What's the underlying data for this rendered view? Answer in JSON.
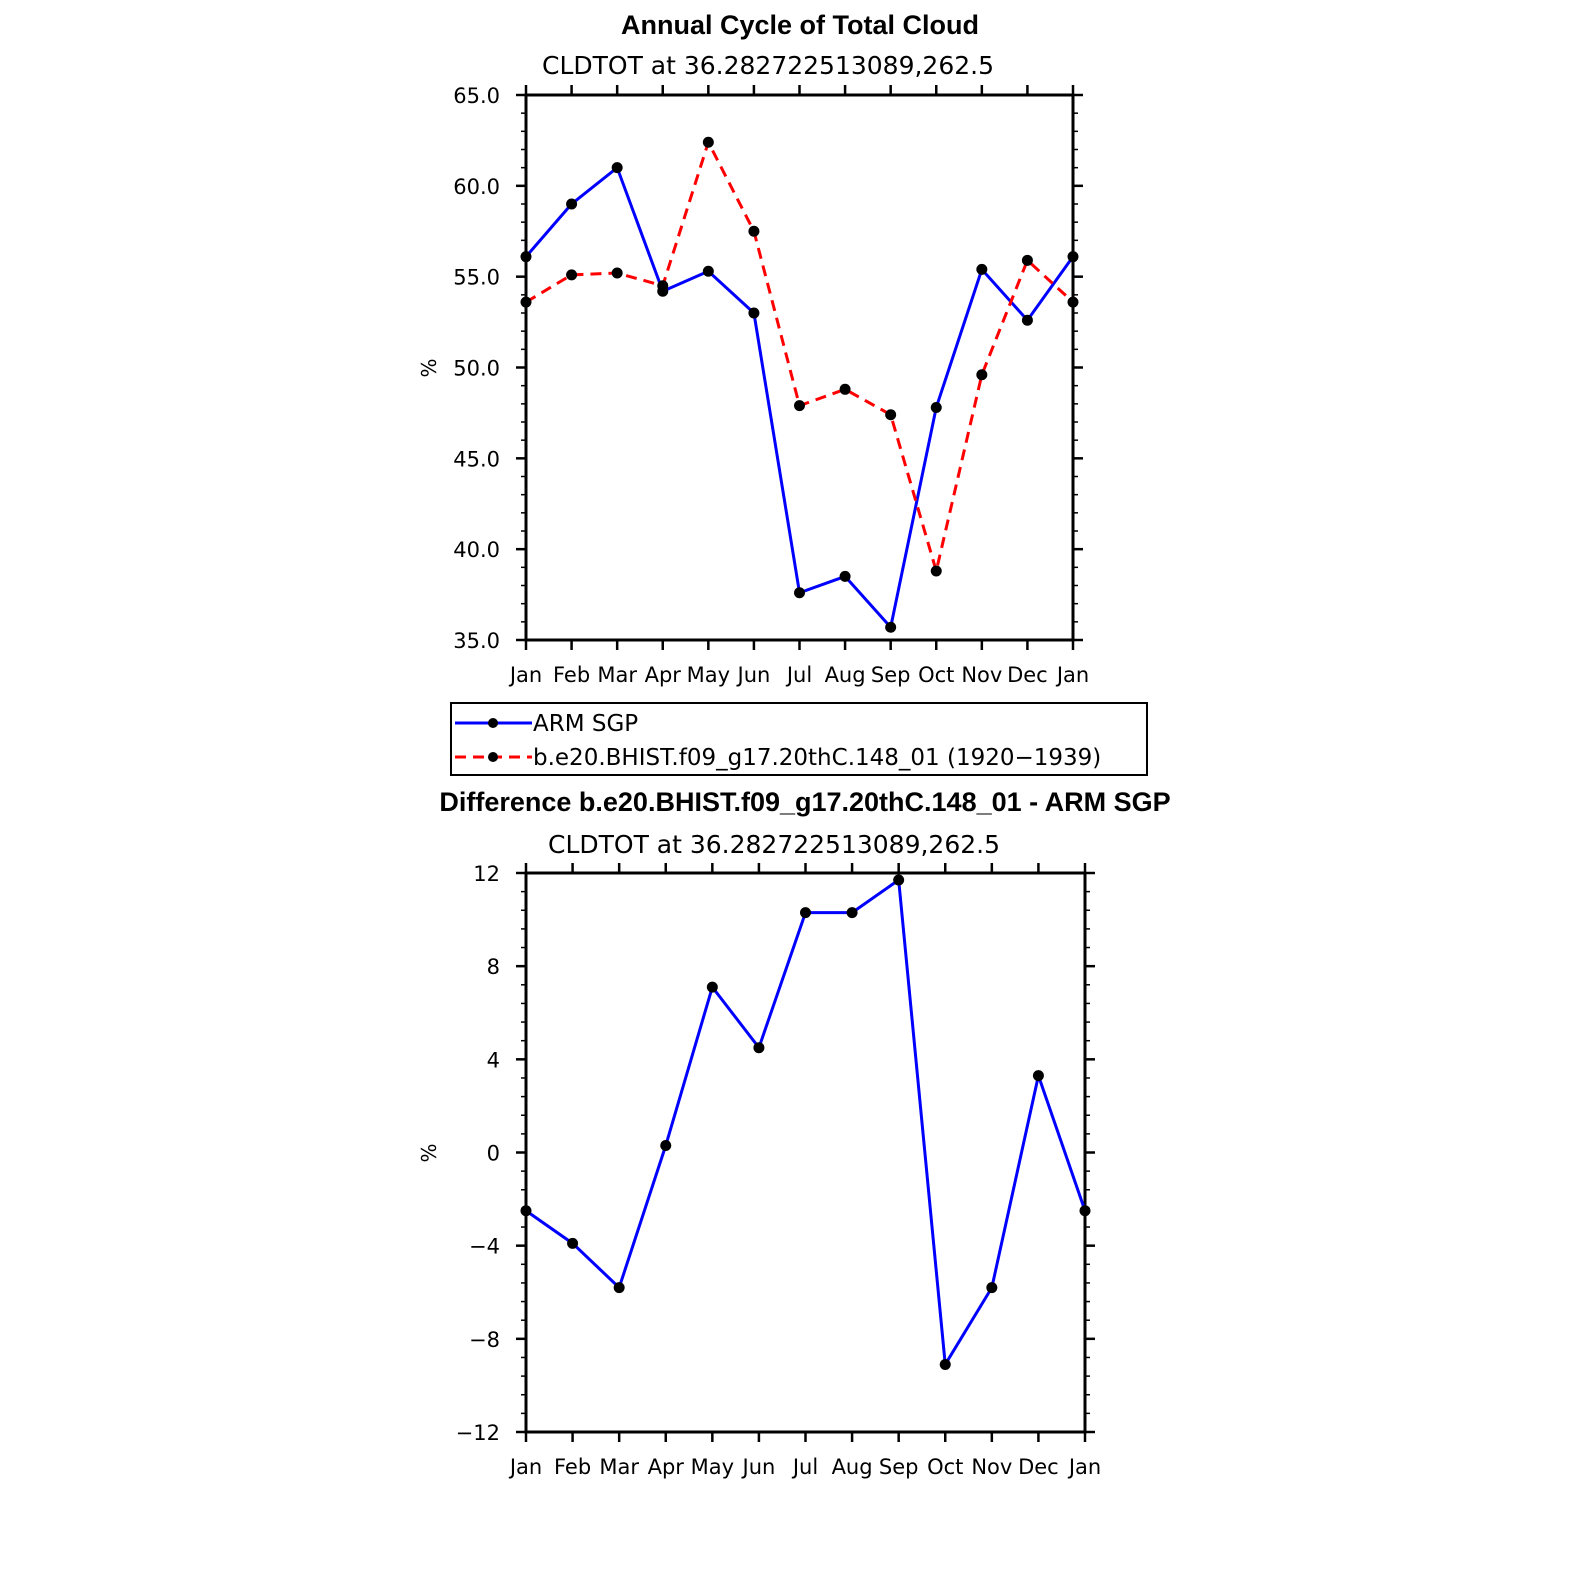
{
  "chart_data": [
    {
      "type": "line",
      "title": "Annual Cycle of Total Cloud",
      "subtitle": "CLDTOT at 36.282722513089,262.5",
      "ylabel": "%",
      "ylim": [
        35.0,
        65.0
      ],
      "yticks": [
        "35.0",
        "40.0",
        "45.0",
        "50.0",
        "55.0",
        "60.0",
        "65.0"
      ],
      "categories": [
        "Jan",
        "Feb",
        "Mar",
        "Apr",
        "May",
        "Jun",
        "Jul",
        "Aug",
        "Sep",
        "Oct",
        "Nov",
        "Dec",
        "Jan"
      ],
      "series": [
        {
          "name": "ARM SGP",
          "color": "#0000ff",
          "style": "solid",
          "values": [
            56.1,
            59.0,
            61.0,
            54.2,
            55.3,
            53.0,
            37.6,
            38.5,
            35.7,
            47.8,
            55.4,
            52.6,
            56.1
          ]
        },
        {
          "name": "b.e20.BHIST.f09_g17.20thC.148_01 (1920−1939)",
          "color": "#ff0000",
          "style": "dashed",
          "values": [
            53.6,
            55.1,
            55.2,
            54.5,
            62.4,
            57.5,
            47.9,
            48.8,
            47.4,
            38.8,
            49.6,
            55.9,
            53.6
          ]
        }
      ],
      "legend": "below"
    },
    {
      "type": "line",
      "title": "Difference b.e20.BHIST.f09_g17.20thC.148_01 - ARM SGP",
      "subtitle": "CLDTOT at 36.282722513089,262.5",
      "ylabel": "%",
      "ylim": [
        -12,
        12
      ],
      "yticks": [
        "−12",
        "−8",
        "−4",
        "0",
        "4",
        "8",
        "12"
      ],
      "categories": [
        "Jan",
        "Feb",
        "Mar",
        "Apr",
        "May",
        "Jun",
        "Jul",
        "Aug",
        "Sep",
        "Oct",
        "Nov",
        "Dec",
        "Jan"
      ],
      "series": [
        {
          "name": "Difference",
          "color": "#0000ff",
          "style": "solid",
          "values": [
            -2.5,
            -3.9,
            -5.8,
            0.3,
            7.1,
            4.5,
            10.3,
            10.3,
            11.7,
            -9.1,
            -5.8,
            3.3,
            -2.5
          ]
        }
      ]
    }
  ]
}
